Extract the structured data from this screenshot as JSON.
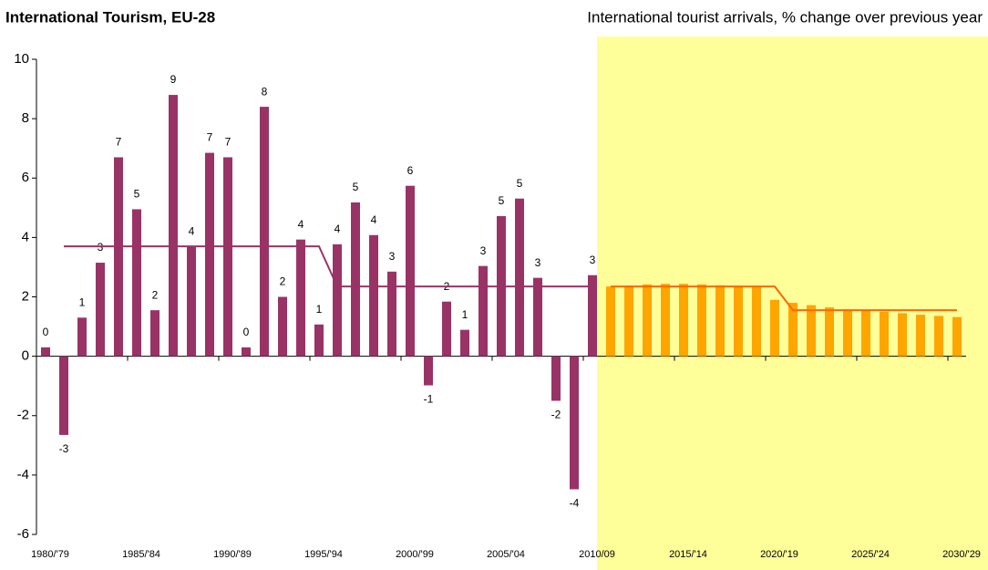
{
  "chart_data": {
    "type": "bar",
    "title": "International Tourism, EU-28",
    "subtitle": "International tourist arrivals, % change over previous year",
    "categories": [
      "1980/'79",
      null,
      null,
      null,
      null,
      "1985/'84",
      null,
      null,
      null,
      null,
      "1990/'89",
      null,
      null,
      null,
      null,
      "1995/'94",
      null,
      null,
      null,
      null,
      "2000/'99",
      null,
      null,
      null,
      null,
      "2005/'04",
      null,
      null,
      null,
      null,
      "2010/09",
      null,
      null,
      null,
      null,
      "2015/'14",
      null,
      null,
      null,
      null,
      "2020/'19",
      null,
      null,
      null,
      null,
      "2025/'24",
      null,
      null,
      null,
      null,
      "2030/'29"
    ],
    "series": [
      {
        "type": "bar",
        "color": "#993366",
        "values": [
          0.3,
          -2.65,
          1.3,
          3.15,
          6.7,
          4.95,
          1.55,
          8.8,
          3.7,
          6.85,
          6.7,
          0.3,
          8.4,
          2.0,
          3.93,
          1.07,
          3.77,
          5.18,
          4.08,
          2.85,
          5.74,
          -0.98,
          1.84,
          0.89,
          3.04,
          4.72,
          5.31,
          2.64,
          -1.5,
          -4.48,
          2.73,
          null,
          null,
          null,
          null,
          null,
          null,
          null,
          null,
          null,
          null,
          null,
          null,
          null,
          null,
          null,
          null,
          null,
          null,
          null,
          null
        ],
        "value_labels": [
          "0",
          "-3",
          "1",
          "3",
          "7",
          "5",
          "2",
          "9",
          "4",
          "7",
          "7",
          "0",
          "8",
          "2",
          "4",
          "1",
          "4",
          "5",
          "4",
          "3",
          "6",
          "-1",
          "2",
          "1",
          "3",
          "5",
          "5",
          "3",
          "-2",
          "-4",
          "3",
          null,
          null,
          null,
          null,
          null,
          null,
          null,
          null,
          null,
          null,
          null,
          null,
          null,
          null,
          null,
          null,
          null,
          null,
          null,
          null
        ]
      },
      {
        "type": "bar",
        "color": "#ffa500",
        "values": [
          null,
          null,
          null,
          null,
          null,
          null,
          null,
          null,
          null,
          null,
          null,
          null,
          null,
          null,
          null,
          null,
          null,
          null,
          null,
          null,
          null,
          null,
          null,
          null,
          null,
          null,
          null,
          null,
          null,
          null,
          null,
          2.35,
          2.38,
          2.42,
          2.44,
          2.44,
          2.42,
          2.39,
          2.35,
          2.32,
          1.9,
          1.8,
          1.72,
          1.65,
          1.58,
          1.53,
          1.5,
          1.45,
          1.4,
          1.36,
          1.32
        ]
      },
      {
        "type": "line",
        "color": "#993366",
        "values": [
          null,
          3.7,
          3.7,
          3.7,
          3.7,
          3.7,
          3.7,
          3.7,
          3.7,
          3.7,
          3.7,
          3.7,
          3.7,
          3.7,
          3.7,
          3.7,
          2.35,
          2.35,
          2.35,
          2.35,
          2.35,
          2.35,
          2.35,
          2.35,
          2.35,
          2.35,
          2.35,
          2.35,
          2.35,
          2.35,
          2.35,
          null,
          null,
          null,
          null,
          null,
          null,
          null,
          null,
          null,
          null,
          null,
          null,
          null,
          null,
          null,
          null,
          null,
          null,
          null,
          null
        ]
      },
      {
        "type": "line",
        "color": "#ff6600",
        "values": [
          null,
          null,
          null,
          null,
          null,
          null,
          null,
          null,
          null,
          null,
          null,
          null,
          null,
          null,
          null,
          null,
          null,
          null,
          null,
          null,
          null,
          null,
          null,
          null,
          null,
          null,
          null,
          null,
          null,
          null,
          null,
          2.35,
          2.35,
          2.35,
          2.35,
          2.35,
          2.35,
          2.35,
          2.35,
          2.35,
          2.35,
          1.55,
          1.55,
          1.55,
          1.55,
          1.55,
          1.55,
          1.55,
          1.55,
          1.55,
          1.55
        ]
      }
    ],
    "forecast_background": "#ffff99",
    "ylim": [
      -6,
      10
    ],
    "yticks": [
      -6,
      -4,
      -2,
      0,
      2,
      4,
      6,
      8,
      10
    ]
  }
}
